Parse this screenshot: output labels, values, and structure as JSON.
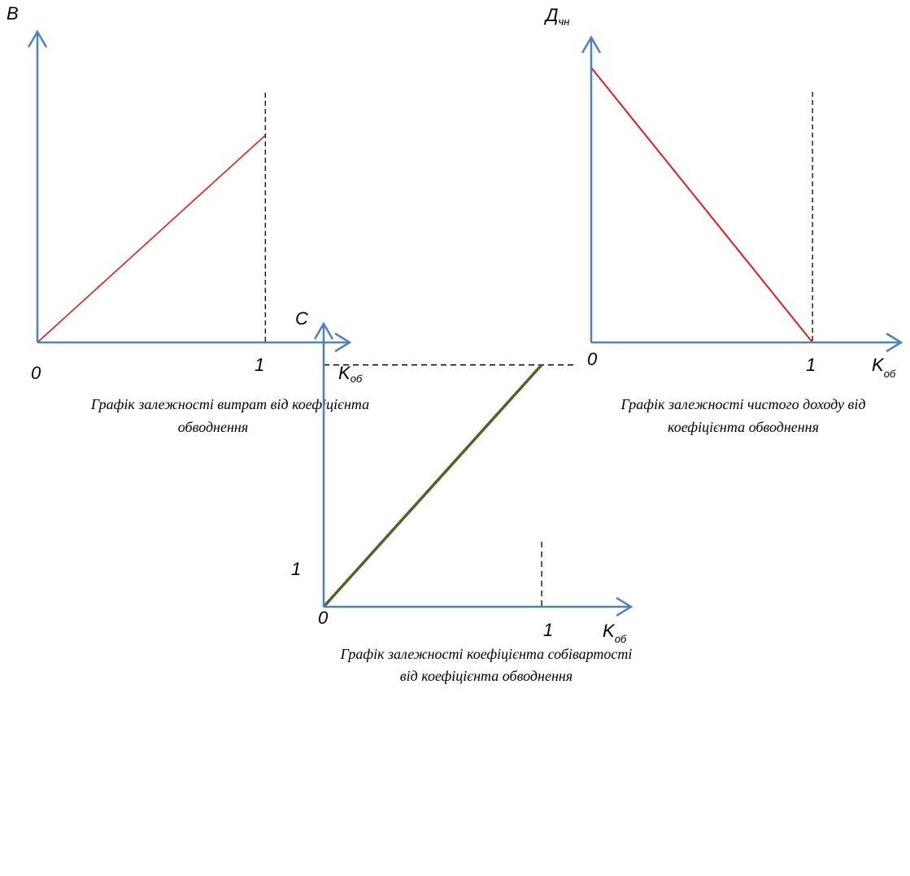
{
  "colors": {
    "axis": "#4f81bd",
    "red_line": "#e41b1b",
    "green_line": "#4f6228",
    "guide": "#000000"
  },
  "chart_data": [
    {
      "type": "line",
      "ylabel": "В",
      "xlabel_main": "K",
      "xlabel_sub": "об",
      "origin_label": "0",
      "x_ticks": [
        {
          "value": 1,
          "label": "1"
        }
      ],
      "series": [
        {
          "x": [
            0,
            1
          ],
          "y": [
            0,
            0.8
          ]
        }
      ],
      "xlim": [
        0,
        1.37
      ],
      "ylim": [
        0,
        1.2
      ],
      "guide_x": 1,
      "caption": [
        "Графік залежності витрат від коефіцієнта",
        "обводнення"
      ]
    },
    {
      "type": "line",
      "ylabel_main": "Д",
      "ylabel_sub": "чн",
      "xlabel_main": "K",
      "xlabel_sub": "об",
      "origin_label": "0",
      "x_ticks": [
        {
          "value": 1,
          "label": "1"
        }
      ],
      "series": [
        {
          "x": [
            0,
            1
          ],
          "y": [
            1,
            0
          ]
        }
      ],
      "xlim": [
        0,
        1.4
      ],
      "ylim": [
        0,
        1.11
      ],
      "guide_x": 1,
      "caption": [
        "Графік залежності чистого доходу від",
        "коефіцієнта обводнення"
      ]
    },
    {
      "type": "line",
      "ylabel": "С",
      "xlabel_main": "K",
      "xlabel_sub": "об",
      "origin_label": "0",
      "x_ticks": [
        {
          "value": 1,
          "label": "1"
        }
      ],
      "y_ticks": [
        {
          "value": 1,
          "label": "1"
        }
      ],
      "series": [
        {
          "x": [
            0,
            1
          ],
          "y": [
            0,
            1
          ]
        }
      ],
      "xlim": [
        0,
        1.41
      ],
      "ylim": [
        0,
        1.17
      ],
      "guide_x": 1,
      "guide_y": 1,
      "caption": [
        "Графік залежності коефіцієнта собівартості",
        "від коефіцієнта обводнення"
      ]
    }
  ]
}
